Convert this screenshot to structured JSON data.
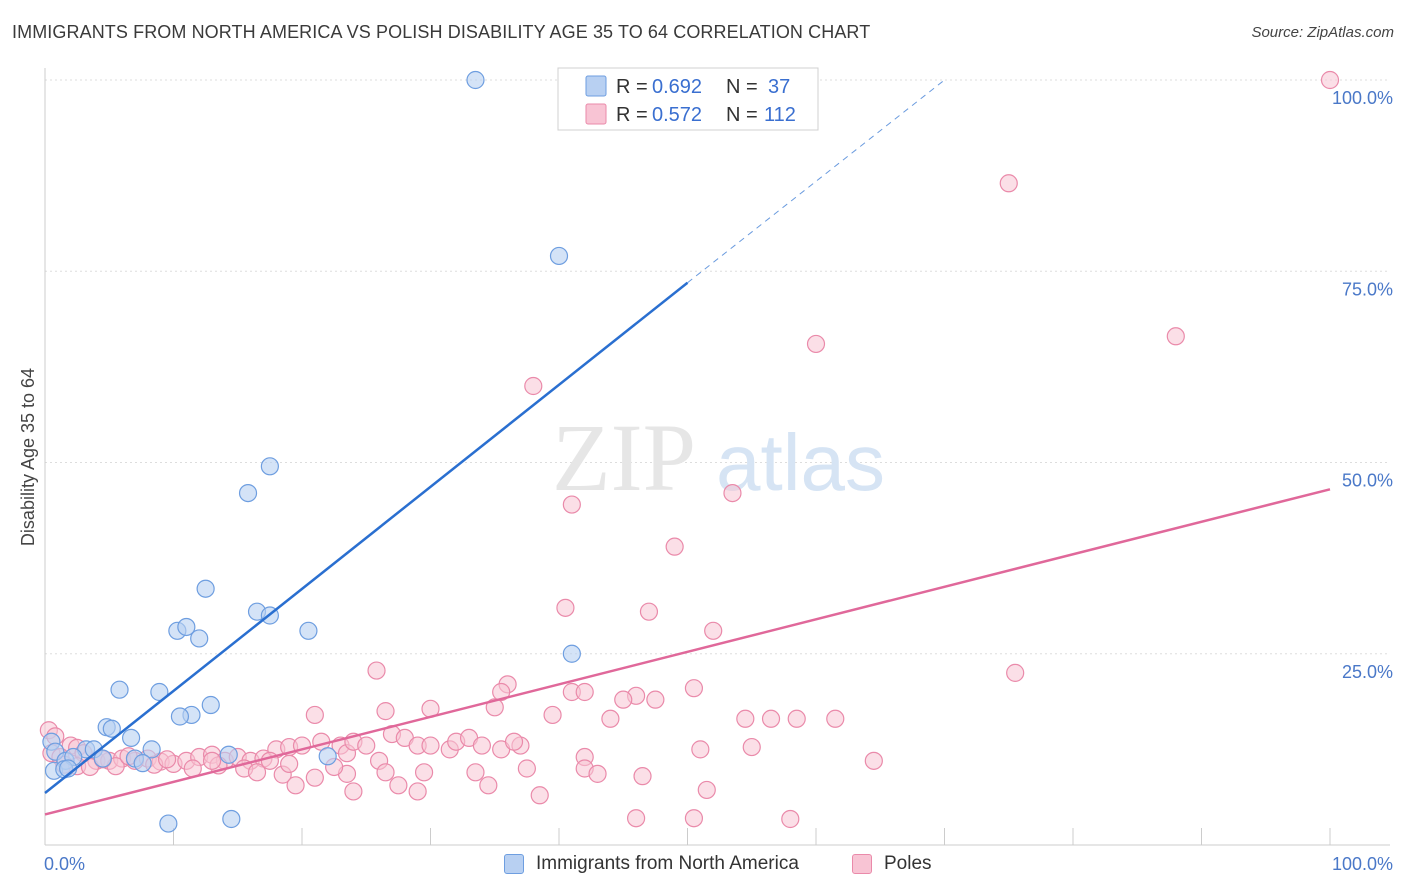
{
  "title": "IMMIGRANTS FROM NORTH AMERICA VS POLISH DISABILITY AGE 35 TO 64 CORRELATION CHART",
  "source": "Source: ZipAtlas.com",
  "watermark": {
    "zip": "ZIP",
    "atlas": "atlas"
  },
  "colors": {
    "blue_fill": "#b8d0f2",
    "blue_stroke": "#6e9ee0",
    "blue_line": "#2a6fd0",
    "pink_fill": "#f8c4d4",
    "pink_stroke": "#ea8aaa",
    "pink_line": "#e0689a",
    "tick": "#4a78c8",
    "grid": "#dddddd"
  },
  "legend": {
    "series1": {
      "r_label": "R =",
      "r_value": "0.692",
      "n_label": "N =",
      "n_value": "37"
    },
    "series2": {
      "r_label": "R =",
      "r_value": "0.572",
      "n_label": "N =",
      "n_value": "112"
    }
  },
  "bottom_legend": {
    "series1": "Immigrants from North America",
    "series2": "Poles"
  },
  "chart_data": {
    "type": "scatter",
    "title": "IMMIGRANTS FROM NORTH AMERICA VS POLISH DISABILITY AGE 35 TO 64 CORRELATION CHART",
    "xlabel": "",
    "ylabel": "Disability Age 35 to 64",
    "xlim": [
      0,
      100
    ],
    "ylim": [
      0,
      100
    ],
    "x_tick_labels": [
      "0.0%",
      "100.0%"
    ],
    "y_tick_labels": [
      {
        "value": 25,
        "label": "25.0%"
      },
      {
        "value": 50,
        "label": "50.0%"
      },
      {
        "value": 75,
        "label": "75.0%"
      },
      {
        "value": 100,
        "label": "100.0%"
      }
    ],
    "series": [
      {
        "name": "Immigrants from North America",
        "R": 0.692,
        "N": 37,
        "trend": {
          "x0": 0,
          "y0": 6.8,
          "x1": 50,
          "y1": 73.5,
          "dash_to_x": 70,
          "dash_to_y": 100
        },
        "points": [
          [
            33.5,
            100
          ],
          [
            40,
            77
          ],
          [
            17.5,
            49.5
          ],
          [
            15.8,
            46
          ],
          [
            12.5,
            33.5
          ],
          [
            16.5,
            30.5
          ],
          [
            17.5,
            30
          ],
          [
            10.3,
            28
          ],
          [
            11,
            28.5
          ],
          [
            12,
            27
          ],
          [
            20.5,
            28
          ],
          [
            8.9,
            20
          ],
          [
            5.8,
            20.3
          ],
          [
            12.9,
            18.3
          ],
          [
            11.4,
            17
          ],
          [
            10.5,
            16.8
          ],
          [
            4.8,
            15.4
          ],
          [
            5.2,
            15.2
          ],
          [
            6.7,
            14
          ],
          [
            41,
            25
          ],
          [
            0.5,
            13.5
          ],
          [
            3.2,
            12.5
          ],
          [
            3.8,
            12.5
          ],
          [
            8.3,
            12.5
          ],
          [
            0.8,
            12.2
          ],
          [
            1.6,
            11
          ],
          [
            2.2,
            11.5
          ],
          [
            4.5,
            11.3
          ],
          [
            7,
            11.3
          ],
          [
            7.6,
            10.7
          ],
          [
            14.3,
            11.8
          ],
          [
            22,
            11.6
          ],
          [
            0.7,
            9.7
          ],
          [
            1.5,
            9.9
          ],
          [
            1.8,
            10
          ],
          [
            9.6,
            2.8
          ],
          [
            14.5,
            3.4
          ]
        ]
      },
      {
        "name": "Poles",
        "R": 0.572,
        "N": 112,
        "trend": {
          "x0": 0,
          "y0": 4.0,
          "x1": 100,
          "y1": 46.5
        },
        "points": [
          [
            100,
            100
          ],
          [
            75,
            86.5
          ],
          [
            88,
            66.5
          ],
          [
            60,
            65.5
          ],
          [
            38,
            60
          ],
          [
            53.5,
            46
          ],
          [
            41,
            44.5
          ],
          [
            49,
            39
          ],
          [
            40.5,
            31
          ],
          [
            47,
            30.5
          ],
          [
            52,
            28
          ],
          [
            25.8,
            22.8
          ],
          [
            75.5,
            22.5
          ],
          [
            36,
            21
          ],
          [
            35.5,
            20
          ],
          [
            41,
            20
          ],
          [
            42,
            20
          ],
          [
            46,
            19.5
          ],
          [
            45,
            19
          ],
          [
            50.5,
            20.5
          ],
          [
            47.5,
            19
          ],
          [
            30,
            17.8
          ],
          [
            26.5,
            17.5
          ],
          [
            35,
            18
          ],
          [
            39.5,
            17
          ],
          [
            54.5,
            16.5
          ],
          [
            56.5,
            16.5
          ],
          [
            58.5,
            16.5
          ],
          [
            44,
            16.5
          ],
          [
            61.5,
            16.5
          ],
          [
            21,
            17
          ],
          [
            0.3,
            15
          ],
          [
            0.8,
            14.2
          ],
          [
            2,
            13
          ],
          [
            2.5,
            12.7
          ],
          [
            0.5,
            12
          ],
          [
            1.2,
            11.5
          ],
          [
            3,
            12
          ],
          [
            4,
            11
          ],
          [
            5,
            11
          ],
          [
            6,
            11.3
          ],
          [
            7,
            11
          ],
          [
            8,
            11.3
          ],
          [
            9,
            10.9
          ],
          [
            10,
            10.6
          ],
          [
            11,
            11
          ],
          [
            12,
            11.5
          ],
          [
            13,
            11.8
          ],
          [
            14,
            11
          ],
          [
            15,
            11.5
          ],
          [
            16,
            11
          ],
          [
            17,
            11.3
          ],
          [
            18,
            12.5
          ],
          [
            19,
            12.8
          ],
          [
            20,
            13
          ],
          [
            21.5,
            13.5
          ],
          [
            23,
            13
          ],
          [
            23.5,
            12
          ],
          [
            24,
            13.5
          ],
          [
            25,
            13
          ],
          [
            26,
            11
          ],
          [
            27,
            14.5
          ],
          [
            28,
            14
          ],
          [
            29,
            13
          ],
          [
            30,
            13
          ],
          [
            31.5,
            12.5
          ],
          [
            32,
            13.5
          ],
          [
            33,
            14
          ],
          [
            34,
            13
          ],
          [
            35.5,
            12.5
          ],
          [
            37,
            13
          ],
          [
            36.5,
            13.5
          ],
          [
            42,
            11.5
          ],
          [
            51,
            12.5
          ],
          [
            55,
            12.8
          ],
          [
            1.5,
            10.5
          ],
          [
            2.5,
            10.3
          ],
          [
            3.5,
            10.2
          ],
          [
            5.5,
            10.3
          ],
          [
            8.5,
            10.5
          ],
          [
            11.5,
            10
          ],
          [
            13.5,
            10.4
          ],
          [
            15.5,
            10
          ],
          [
            16.5,
            9.5
          ],
          [
            18.5,
            9.2
          ],
          [
            21,
            8.8
          ],
          [
            23.5,
            9.3
          ],
          [
            26.5,
            9.5
          ],
          [
            29.5,
            9.5
          ],
          [
            33.5,
            9.5
          ],
          [
            37.5,
            10
          ],
          [
            42,
            10
          ],
          [
            43,
            9.3
          ],
          [
            46.5,
            9
          ],
          [
            64.5,
            11
          ],
          [
            19.5,
            7.8
          ],
          [
            24,
            7
          ],
          [
            27.5,
            7.8
          ],
          [
            29,
            7
          ],
          [
            34.5,
            7.8
          ],
          [
            38.5,
            6.5
          ],
          [
            51.5,
            7.2
          ],
          [
            46,
            3.5
          ],
          [
            50.5,
            3.5
          ],
          [
            58,
            3.4
          ],
          [
            4.5,
            11.2
          ],
          [
            6.5,
            11.6
          ],
          [
            9.5,
            11.2
          ],
          [
            13,
            11
          ],
          [
            17.5,
            11
          ],
          [
            19,
            10.6
          ],
          [
            22.5,
            10.2
          ]
        ]
      }
    ]
  }
}
